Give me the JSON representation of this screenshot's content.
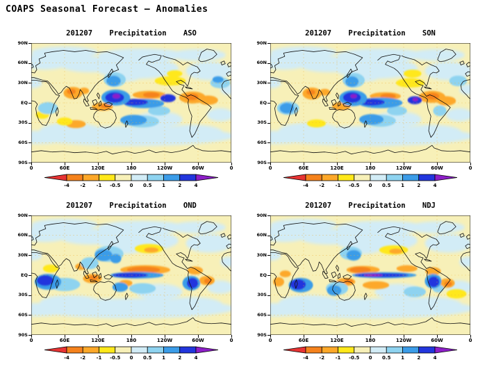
{
  "page": {
    "title": "COAPS Seasonal Forecast – Anomalies"
  },
  "chart_data": {
    "type": "heatmap",
    "layout": "2x2 global seasonal precipitation anomaly maps, world projection lon 0E..360E left-to-right, lat 90N..90S top-to-bottom",
    "axes": {
      "y_tick_labels": [
        "90N",
        "60N",
        "30N",
        "EQ",
        "30S",
        "60S",
        "90S"
      ],
      "x_tick_labels": [
        "0",
        "60E",
        "120E",
        "180",
        "120W",
        "60W",
        "0"
      ]
    },
    "colorbar": {
      "tick_labels": [
        "-4",
        "-2",
        "-1",
        "-0.5",
        "0",
        "0.5",
        "1",
        "2",
        "4"
      ],
      "segment_colors": [
        "#f5821c",
        "#fda829",
        "#ffe81a",
        "#f7f0b8",
        "#d2ecf6",
        "#8ed3f0",
        "#3b9ce8",
        "#2236dd"
      ],
      "below_min_color": "#e83434",
      "above_max_color": "#8d1fc8"
    },
    "level_colors": {
      "rd": "#e83434",
      "o2": "#f5821c",
      "o1": "#fda829",
      "y": "#ffe81a",
      "py": "#f7f0b8",
      "pb": "#d2ecf6",
      "lb": "#8ed3f0",
      "mb": "#3b9ce8",
      "db": "#2236dd",
      "pu": "#8d1fc8"
    },
    "base_color": "#f7f0b8",
    "gridline_color": "#edb23c",
    "base_patches": [
      [
        190,
        52,
        75,
        16
      ],
      [
        320,
        48,
        42,
        14
      ],
      [
        25,
        62,
        45,
        12
      ],
      [
        105,
        58,
        55,
        12
      ],
      [
        180,
        -50,
        185,
        15
      ],
      [
        70,
        -42,
        55,
        12
      ],
      [
        290,
        -45,
        55,
        12
      ],
      [
        10,
        -52,
        60,
        10
      ],
      [
        200,
        72,
        80,
        10
      ],
      [
        60,
        76,
        60,
        9
      ],
      [
        300,
        72,
        50,
        9
      ],
      [
        230,
        -25,
        42,
        12
      ],
      [
        340,
        -18,
        24,
        10
      ],
      [
        170,
        42,
        30,
        10
      ],
      [
        0,
        30,
        20,
        8
      ],
      [
        355,
        20,
        15,
        8
      ]
    ],
    "panels": [
      {
        "date": "201207",
        "variable": "Precipitation",
        "season": "ASO",
        "anomaly_blobs": [
          [
            250,
            33,
            28,
            7,
            "y"
          ],
          [
            258,
            44,
            14,
            5,
            "y"
          ],
          [
            75,
            15,
            17,
            9,
            "o1"
          ],
          [
            72,
            17,
            8,
            4,
            "o2"
          ],
          [
            95,
            18,
            9,
            5,
            "o1"
          ],
          [
            128,
            -6,
            19,
            6,
            "o1"
          ],
          [
            133,
            -5,
            9,
            3,
            "o2"
          ],
          [
            212,
            12,
            30,
            6,
            "o1"
          ],
          [
            216,
            12,
            15,
            4,
            "o2"
          ],
          [
            290,
            8,
            24,
            9,
            "o1"
          ],
          [
            289,
            9,
            12,
            5,
            "o2"
          ],
          [
            318,
            4,
            18,
            7,
            "o1"
          ],
          [
            80,
            -32,
            18,
            6,
            "o1"
          ],
          [
            60,
            -28,
            14,
            6,
            "y"
          ],
          [
            20,
            -18,
            12,
            6,
            "y"
          ],
          [
            340,
            30,
            18,
            8,
            "lb"
          ],
          [
            336,
            35,
            10,
            5,
            "mb"
          ],
          [
            150,
            35,
            20,
            11,
            "lb"
          ],
          [
            148,
            33,
            13,
            8,
            "mb"
          ],
          [
            200,
            -28,
            30,
            9,
            "lb"
          ],
          [
            184,
            -26,
            24,
            8,
            "mb"
          ],
          [
            230,
            -12,
            20,
            7,
            "lb"
          ],
          [
            30,
            -8,
            18,
            9,
            "lb"
          ],
          [
            203,
            -1,
            36,
            7,
            "mb"
          ],
          [
            186,
            1,
            24,
            5,
            "db"
          ],
          [
            152,
            8,
            26,
            12,
            "mb"
          ],
          [
            150,
            8,
            17,
            8,
            "db"
          ],
          [
            153,
            10,
            7,
            3.5,
            "pu"
          ],
          [
            246,
            7,
            14,
            6,
            "db"
          ]
        ]
      },
      {
        "date": "201207",
        "variable": "Precipitation",
        "season": "SON",
        "anomaly_blobs": [
          [
            252,
            30,
            26,
            7,
            "y"
          ],
          [
            256,
            44,
            16,
            6,
            "y"
          ],
          [
            75,
            14,
            17,
            9,
            "o1"
          ],
          [
            73,
            16,
            8,
            4,
            "o2"
          ],
          [
            98,
            16,
            10,
            5,
            "o1"
          ],
          [
            128,
            -5,
            17,
            6,
            "o1"
          ],
          [
            207,
            10,
            28,
            6,
            "o1"
          ],
          [
            212,
            10,
            14,
            4,
            "o2"
          ],
          [
            291,
            9,
            24,
            9,
            "o1"
          ],
          [
            292,
            10,
            12,
            5,
            "o2"
          ],
          [
            317,
            3,
            17,
            7,
            "o1"
          ],
          [
            83,
            -31,
            17,
            6,
            "y"
          ],
          [
            150,
            34,
            20,
            11,
            "lb"
          ],
          [
            147,
            32,
            12,
            8,
            "mb"
          ],
          [
            198,
            -27,
            28,
            9,
            "lb"
          ],
          [
            182,
            -25,
            22,
            8,
            "mb"
          ],
          [
            228,
            -12,
            18,
            7,
            "lb"
          ],
          [
            32,
            -8,
            20,
            10,
            "lb"
          ],
          [
            30,
            -8,
            13,
            8,
            "mb"
          ],
          [
            305,
            -12,
            12,
            8,
            "lb"
          ],
          [
            338,
            33,
            16,
            8,
            "lb"
          ],
          [
            198,
            0,
            40,
            8,
            "mb"
          ],
          [
            182,
            1,
            24,
            5,
            "db"
          ],
          [
            149,
            7,
            25,
            12,
            "mb"
          ],
          [
            147,
            8,
            16,
            8,
            "db"
          ],
          [
            150,
            10,
            6,
            3,
            "pu"
          ],
          [
            260,
            4,
            13,
            6,
            "db"
          ],
          [
            261,
            5,
            5,
            2.5,
            "pu"
          ]
        ]
      },
      {
        "date": "201207",
        "variable": "Precipitation",
        "season": "OND",
        "anomaly_blobs": [
          [
            212,
            40,
            26,
            7,
            "y"
          ],
          [
            216,
            38,
            13,
            4,
            "o1"
          ],
          [
            205,
            8,
            45,
            7,
            "o1"
          ],
          [
            202,
            8,
            30,
            5,
            "o2"
          ],
          [
            110,
            -5,
            17,
            7,
            "o1"
          ],
          [
            112,
            -4,
            8,
            4,
            "o2"
          ],
          [
            90,
            13,
            11,
            5,
            "o1"
          ],
          [
            295,
            7,
            14,
            6,
            "o1"
          ],
          [
            316,
            -8,
            14,
            7,
            "o1"
          ],
          [
            318,
            -9,
            7,
            4,
            "o2"
          ],
          [
            170,
            -12,
            12,
            5,
            "o1"
          ],
          [
            35,
            10,
            14,
            6,
            "y"
          ],
          [
            140,
            32,
            26,
            12,
            "lb"
          ],
          [
            130,
            30,
            16,
            9,
            "mb"
          ],
          [
            152,
            25,
            10,
            7,
            "mb"
          ],
          [
            105,
            18,
            16,
            9,
            "lb"
          ],
          [
            60,
            -14,
            28,
            10,
            "lb"
          ],
          [
            30,
            -10,
            24,
            12,
            "mb"
          ],
          [
            25,
            -8,
            15,
            8,
            "db"
          ],
          [
            190,
            0,
            48,
            5,
            "mb"
          ],
          [
            178,
            0,
            32,
            3.5,
            "db"
          ],
          [
            288,
            -12,
            16,
            11,
            "mb"
          ],
          [
            290,
            -12,
            10,
            8,
            "db"
          ],
          [
            160,
            -18,
            14,
            7,
            "mb"
          ],
          [
            200,
            -20,
            24,
            8,
            "lb"
          ]
        ]
      },
      {
        "date": "201207",
        "variable": "Precipitation",
        "season": "NDJ",
        "anomaly_blobs": [
          [
            222,
            38,
            26,
            7,
            "y"
          ],
          [
            226,
            36,
            12,
            4,
            "o1"
          ],
          [
            167,
            8,
            30,
            6,
            "o1"
          ],
          [
            162,
            8,
            19,
            4.5,
            "o2"
          ],
          [
            246,
            10,
            19,
            5,
            "o1"
          ],
          [
            136,
            -10,
            17,
            6,
            "o1"
          ],
          [
            141,
            -9,
            8,
            3.5,
            "o2"
          ],
          [
            15,
            -10,
            10,
            7,
            "o1"
          ],
          [
            27,
            2,
            10,
            5,
            "o1"
          ],
          [
            190,
            -15,
            24,
            6,
            "o1"
          ],
          [
            293,
            6,
            14,
            6,
            "o1"
          ],
          [
            318,
            -12,
            14,
            7,
            "o1"
          ],
          [
            320,
            -13,
            7,
            4,
            "o2"
          ],
          [
            335,
            -28,
            18,
            7,
            "y"
          ],
          [
            145,
            33,
            20,
            10,
            "lb"
          ],
          [
            150,
            30,
            13,
            8,
            "mb"
          ],
          [
            120,
            -20,
            20,
            10,
            "lb"
          ],
          [
            115,
            -23,
            13,
            8,
            "mb"
          ],
          [
            260,
            -25,
            20,
            8,
            "lb"
          ],
          [
            302,
            -20,
            10,
            6,
            "lb"
          ],
          [
            55,
            -15,
            22,
            11,
            "mb"
          ],
          [
            50,
            -14,
            14,
            8,
            "db"
          ],
          [
            205,
            0,
            58,
            4.5,
            "mb"
          ],
          [
            200,
            0,
            48,
            3,
            "db"
          ],
          [
            185,
            0,
            17,
            2,
            "pu"
          ],
          [
            293,
            -9,
            15,
            11,
            "mb"
          ],
          [
            294,
            -10,
            10,
            8,
            "db"
          ]
        ]
      }
    ]
  }
}
